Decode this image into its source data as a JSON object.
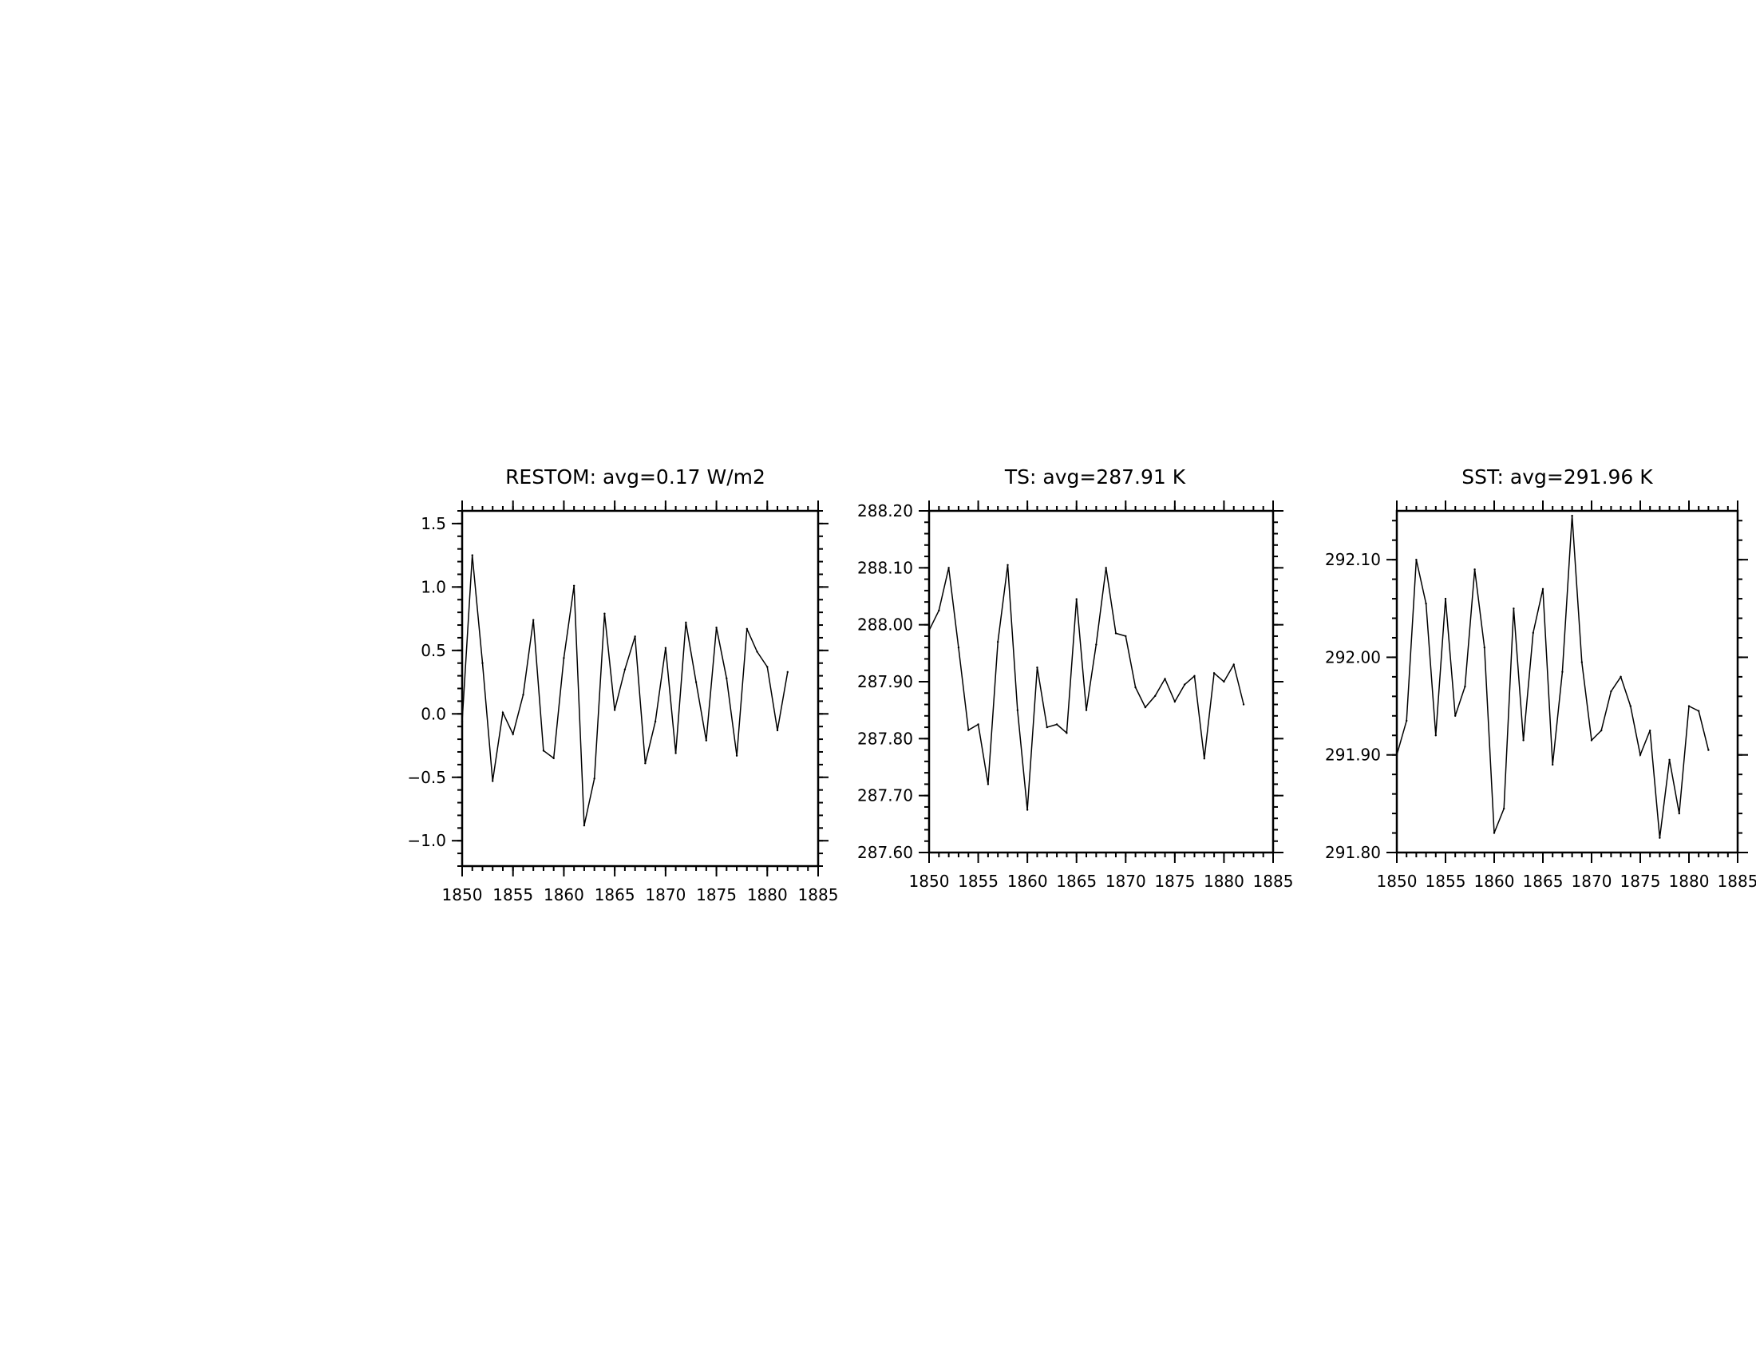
{
  "chart_data": [
    {
      "type": "line",
      "title": "RESTOM: avg=0.17 W/m2",
      "xlabel": "",
      "ylabel": "",
      "xlim": [
        1850,
        1885
      ],
      "ylim": [
        -1.2,
        1.6
      ],
      "xticks": [
        1850,
        1855,
        1860,
        1865,
        1870,
        1875,
        1880,
        1885
      ],
      "xtick_labels": [
        "1850",
        "1855",
        "1860",
        "1865",
        "1870",
        "1875",
        "1880",
        "1885"
      ],
      "yticks": [
        -1.0,
        -0.5,
        0.0,
        0.5,
        1.0,
        1.5
      ],
      "ytick_labels": [
        "−1.0",
        "−0.5",
        "0.0",
        "0.5",
        "1.0",
        "1.5"
      ],
      "ytick_minor_step": 0.1,
      "grid": false,
      "color": "#000000",
      "x": [
        1850,
        1851,
        1852,
        1853,
        1854,
        1855,
        1856,
        1857,
        1858,
        1859,
        1860,
        1861,
        1862,
        1863,
        1864,
        1865,
        1866,
        1867,
        1868,
        1869,
        1870,
        1871,
        1872,
        1873,
        1874,
        1875,
        1876,
        1877,
        1878,
        1879,
        1880,
        1881,
        1882
      ],
      "y": [
        -0.06,
        1.25,
        0.4,
        -0.53,
        0.01,
        -0.16,
        0.15,
        0.74,
        -0.29,
        -0.35,
        0.44,
        1.01,
        -0.88,
        -0.51,
        0.79,
        0.03,
        0.35,
        0.61,
        -0.39,
        -0.06,
        0.52,
        -0.31,
        0.72,
        0.25,
        -0.21,
        0.68,
        0.28,
        -0.33,
        0.67,
        0.49,
        0.37,
        -0.13,
        0.33
      ]
    },
    {
      "type": "line",
      "title": "TS: avg=287.91 K",
      "xlabel": "",
      "ylabel": "",
      "xlim": [
        1850,
        1885
      ],
      "ylim": [
        287.6,
        288.2
      ],
      "xticks": [
        1850,
        1855,
        1860,
        1865,
        1870,
        1875,
        1880,
        1885
      ],
      "xtick_labels": [
        "1850",
        "1855",
        "1860",
        "1865",
        "1870",
        "1875",
        "1880",
        "1885"
      ],
      "yticks": [
        287.6,
        287.7,
        287.8,
        287.9,
        288.0,
        288.1,
        288.2
      ],
      "ytick_labels": [
        "287.60",
        "287.70",
        "287.80",
        "287.90",
        "288.00",
        "288.10",
        "288.20"
      ],
      "ytick_minor_step": 0.02,
      "grid": false,
      "color": "#000000",
      "x": [
        1850,
        1851,
        1852,
        1853,
        1854,
        1855,
        1856,
        1857,
        1858,
        1859,
        1860,
        1861,
        1862,
        1863,
        1864,
        1865,
        1866,
        1867,
        1868,
        1869,
        1870,
        1871,
        1872,
        1873,
        1874,
        1875,
        1876,
        1877,
        1878,
        1879,
        1880,
        1881,
        1882
      ],
      "y": [
        287.99,
        288.025,
        288.1,
        287.96,
        287.815,
        287.825,
        287.72,
        287.97,
        288.105,
        287.85,
        287.675,
        287.925,
        287.82,
        287.825,
        287.81,
        288.045,
        287.85,
        287.965,
        288.1,
        287.985,
        287.98,
        287.89,
        287.855,
        287.875,
        287.905,
        287.865,
        287.895,
        287.91,
        287.765,
        287.915,
        287.9,
        287.93,
        287.86
      ]
    },
    {
      "type": "line",
      "title": "SST: avg=291.96 K",
      "xlabel": "",
      "ylabel": "",
      "xlim": [
        1850,
        1885
      ],
      "ylim": [
        291.8,
        292.15
      ],
      "xticks": [
        1850,
        1855,
        1860,
        1865,
        1870,
        1875,
        1880,
        1885
      ],
      "xtick_labels": [
        "1850",
        "1855",
        "1860",
        "1865",
        "1870",
        "1875",
        "1880",
        "1885"
      ],
      "yticks": [
        291.8,
        291.9,
        292.0,
        292.1
      ],
      "ytick_labels": [
        "291.80",
        "291.90",
        "292.00",
        "292.10"
      ],
      "ytick_minor_step": 0.02,
      "grid": false,
      "color": "#000000",
      "x": [
        1850,
        1851,
        1852,
        1853,
        1854,
        1855,
        1856,
        1857,
        1858,
        1859,
        1860,
        1861,
        1862,
        1863,
        1864,
        1865,
        1866,
        1867,
        1868,
        1869,
        1870,
        1871,
        1872,
        1873,
        1874,
        1875,
        1876,
        1877,
        1878,
        1879,
        1880,
        1881,
        1882
      ],
      "y": [
        291.9,
        291.935,
        292.1,
        292.055,
        291.92,
        292.06,
        291.94,
        291.97,
        292.09,
        292.01,
        291.82,
        291.845,
        292.05,
        291.915,
        292.025,
        292.07,
        291.89,
        291.985,
        292.145,
        291.995,
        291.915,
        291.925,
        291.965,
        291.98,
        291.95,
        291.9,
        291.925,
        291.815,
        291.895,
        291.84,
        291.95,
        291.945,
        291.905
      ]
    }
  ]
}
